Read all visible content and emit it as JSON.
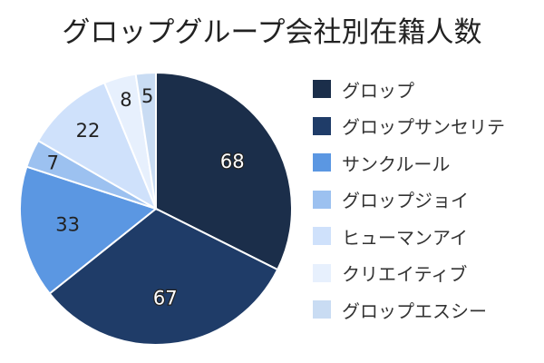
{
  "chart_data": {
    "type": "pie",
    "title": "グロップグループ会社別在籍人数",
    "legend_position": "right",
    "categories": [
      "グロップ",
      "グロップサンセリテ",
      "サンクルール",
      "グロップジョイ",
      "ヒューマンアイ",
      "クリエイティブ",
      "グロップエスシー"
    ],
    "values": [
      68,
      67,
      33,
      7,
      22,
      8,
      5
    ],
    "colors": [
      "#1b2e4a",
      "#1f3c68",
      "#5b97e2",
      "#9cc1f0",
      "#cfe1fb",
      "#e7f0fd",
      "#c9dcf3"
    ],
    "label_colors": [
      "#ffffff",
      "#ffffff",
      "#222222",
      "#222222",
      "#222222",
      "#222222",
      "#222222"
    ]
  }
}
